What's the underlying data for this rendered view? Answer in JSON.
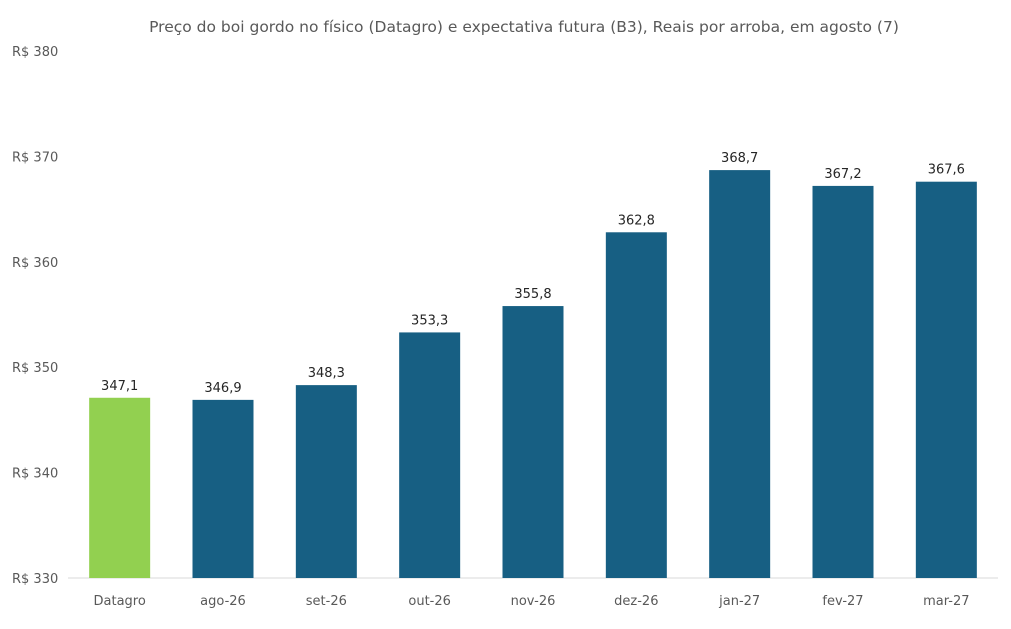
{
  "chart_data": {
    "type": "bar",
    "title": "Preço do boi gordo no físico (Datagro)  e expectativa futura (B3), Reais por arroba, em agosto (7)",
    "xlabel": "",
    "ylabel": "",
    "categories": [
      "Datagro",
      "ago-26",
      "set-26",
      "out-26",
      "nov-26",
      "dez-26",
      "jan-27",
      "fev-27",
      "mar-27"
    ],
    "values": [
      347.1,
      346.9,
      348.3,
      353.3,
      355.8,
      362.8,
      368.7,
      367.2,
      367.6
    ],
    "value_labels": [
      "347,1",
      "346,9",
      "348,3",
      "353,3",
      "355,8",
      "362,8",
      "368,7",
      "367,2",
      "367,6"
    ],
    "bar_colors": [
      "#92d050",
      "#175f83",
      "#175f83",
      "#175f83",
      "#175f83",
      "#175f83",
      "#175f83",
      "#175f83",
      "#175f83"
    ],
    "ylim": [
      330,
      380
    ],
    "yticks": [
      330,
      340,
      350,
      360,
      370,
      380
    ],
    "ytick_labels": [
      "R$ 330",
      "R$ 340",
      "R$ 350",
      "R$ 360",
      "R$ 370",
      "R$ 380"
    ],
    "grid": false,
    "legend": "none"
  }
}
